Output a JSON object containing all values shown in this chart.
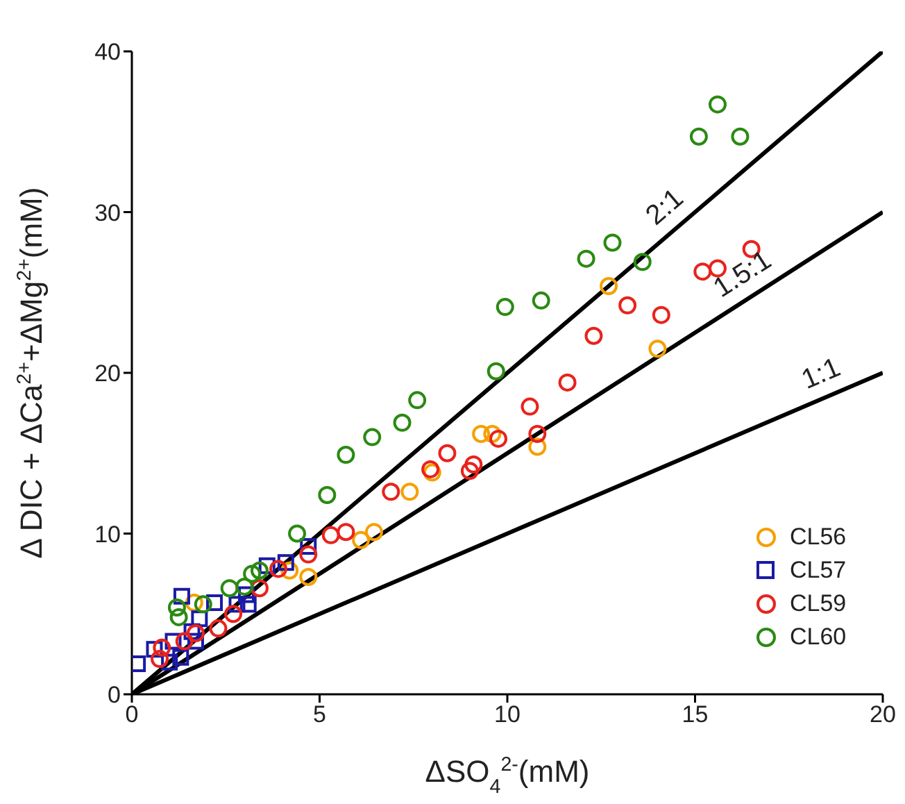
{
  "chart_data": {
    "type": "scatter",
    "xlabel": "ΔSO$_{4}$$^{2-}$(mM)",
    "ylabel": "Δ DIC + ΔCa$^{2+}$+ΔMg$^{2+}$(mM)",
    "xlim": [
      0,
      20
    ],
    "ylim": [
      0,
      40
    ],
    "xticks": [
      0,
      5,
      10,
      15,
      20
    ],
    "yticks": [
      0,
      10,
      20,
      30,
      40
    ],
    "grid": false,
    "legend": "bottom right",
    "series": [
      {
        "name": "CL56",
        "marker": "circle",
        "color": "#f5a000",
        "x": [
          1.66,
          4.2,
          4.7,
          6.1,
          6.45,
          7.4,
          8.0,
          9.3,
          9.6,
          10.8,
          12.7,
          14.0
        ],
        "values": [
          5.7,
          7.7,
          7.3,
          9.6,
          10.1,
          12.6,
          13.8,
          16.2,
          16.2,
          15.4,
          25.4,
          21.5
        ]
      },
      {
        "name": "CL57",
        "marker": "square",
        "color": "#1a1aa6",
        "x": [
          0.15,
          0.6,
          1.0,
          1.3,
          1.1,
          1.33,
          1.6,
          1.7,
          1.8,
          2.2,
          2.8,
          3.05,
          3.1,
          3.6,
          4.1,
          4.7
        ],
        "values": [
          1.9,
          2.8,
          2.0,
          2.3,
          3.3,
          6.1,
          3.9,
          3.3,
          4.7,
          5.7,
          5.6,
          6.2,
          5.6,
          8.0,
          8.2,
          9.2
        ]
      },
      {
        "name": "CL59",
        "marker": "circle",
        "color": "#e8231c",
        "x": [
          0.74,
          0.8,
          1.4,
          1.7,
          2.3,
          2.7,
          3.4,
          3.9,
          4.7,
          5.3,
          5.7,
          6.9,
          7.95,
          8.4,
          9.0,
          9.1,
          9.76,
          10.8,
          10.6,
          11.6,
          12.3,
          13.2,
          14.1,
          15.2,
          15.6,
          16.5
        ],
        "values": [
          2.2,
          2.9,
          3.3,
          3.8,
          4.1,
          5.0,
          6.6,
          7.8,
          8.7,
          9.9,
          10.1,
          12.6,
          14.0,
          15.0,
          13.9,
          14.3,
          15.9,
          16.2,
          17.9,
          19.4,
          22.3,
          24.2,
          23.6,
          26.3,
          26.5,
          27.7
        ]
      },
      {
        "name": "CL60",
        "marker": "circle",
        "color": "#2a8a12",
        "x": [
          1.2,
          1.25,
          1.9,
          2.6,
          3.0,
          3.2,
          3.4,
          4.4,
          5.2,
          5.7,
          6.4,
          7.2,
          7.6,
          9.7,
          9.94,
          10.9,
          12.1,
          12.8,
          13.6,
          15.1,
          15.6,
          16.2
        ],
        "values": [
          5.4,
          4.8,
          5.6,
          6.6,
          6.7,
          7.5,
          7.7,
          10.0,
          12.4,
          14.9,
          16.0,
          16.9,
          18.3,
          20.1,
          24.1,
          24.5,
          27.1,
          28.1,
          26.9,
          34.7,
          36.7,
          34.7
        ]
      },
      {
        "name": "1:1",
        "type": "line",
        "marker": "none",
        "line_style": "solid",
        "color": "#000000",
        "x": [
          0,
          20
        ],
        "values": [
          0,
          20
        ]
      },
      {
        "name": "1.5:1",
        "type": "line",
        "marker": "none",
        "line_style": "solid",
        "color": "#000000",
        "x": [
          0,
          20
        ],
        "values": [
          0,
          30
        ]
      },
      {
        "name": "2:1",
        "type": "line",
        "marker": "none",
        "line_style": "solid",
        "color": "#000000",
        "x": [
          0,
          20
        ],
        "values": [
          0,
          40
        ]
      }
    ]
  }
}
